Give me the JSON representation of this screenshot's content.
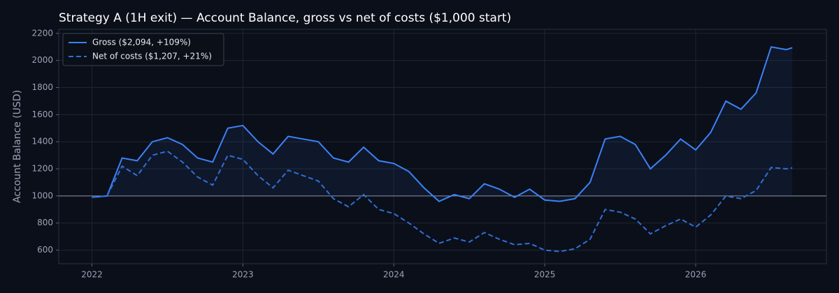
{
  "chart_data": {
    "type": "line",
    "title": "Strategy A (1H exit) — Account Balance, gross vs net of costs ($1,000 start)",
    "y_label": "Account Balance (USD)",
    "x": [
      2022.0,
      2022.1,
      2022.2,
      2022.3,
      2022.4,
      2022.5,
      2022.6,
      2022.7,
      2022.8,
      2022.9,
      2023.0,
      2023.1,
      2023.2,
      2023.3,
      2023.4,
      2023.5,
      2023.6,
      2023.7,
      2023.8,
      2023.9,
      2024.0,
      2024.1,
      2024.2,
      2024.3,
      2024.4,
      2024.5,
      2024.6,
      2024.7,
      2024.8,
      2024.9,
      2025.0,
      2025.1,
      2025.2,
      2025.3,
      2025.4,
      2025.5,
      2025.6,
      2025.7,
      2025.8,
      2025.9,
      2026.0,
      2026.1,
      2026.2,
      2026.3,
      2026.4,
      2026.5,
      2026.6,
      2026.64
    ],
    "series": [
      {
        "name": "Gross ($2,094, +109%)",
        "color": "#3b82f6",
        "style": "solid",
        "values": [
          990,
          1000,
          1280,
          1260,
          1400,
          1430,
          1380,
          1280,
          1250,
          1500,
          1520,
          1400,
          1310,
          1440,
          1420,
          1400,
          1280,
          1250,
          1360,
          1260,
          1240,
          1180,
          1060,
          960,
          1010,
          980,
          1090,
          1050,
          990,
          1050,
          970,
          960,
          980,
          1100,
          1420,
          1440,
          1380,
          1200,
          1300,
          1420,
          1340,
          1470,
          1700,
          1640,
          1760,
          2100,
          2080,
          2094
        ]
      },
      {
        "name": "Net of costs ($1,207, +21%)",
        "color": "#2f6fd6",
        "style": "dashed",
        "values": [
          990,
          1000,
          1220,
          1150,
          1300,
          1330,
          1250,
          1140,
          1080,
          1300,
          1270,
          1150,
          1060,
          1190,
          1150,
          1110,
          980,
          920,
          1010,
          900,
          870,
          800,
          720,
          650,
          690,
          660,
          730,
          680,
          640,
          650,
          600,
          590,
          610,
          680,
          900,
          880,
          830,
          720,
          780,
          830,
          770,
          860,
          1000,
          980,
          1040,
          1210,
          1200,
          1207
        ]
      }
    ],
    "baseline": 1000,
    "xlim": [
      2021.78,
      2026.866
    ],
    "xticks": [
      2022,
      2023,
      2024,
      2025,
      2026
    ],
    "ylim": [
      500,
      2230
    ],
    "yticks": [
      600,
      800,
      1000,
      1200,
      1400,
      1600,
      1800,
      2000,
      2200
    ],
    "grid": true,
    "legend": "upper left"
  }
}
